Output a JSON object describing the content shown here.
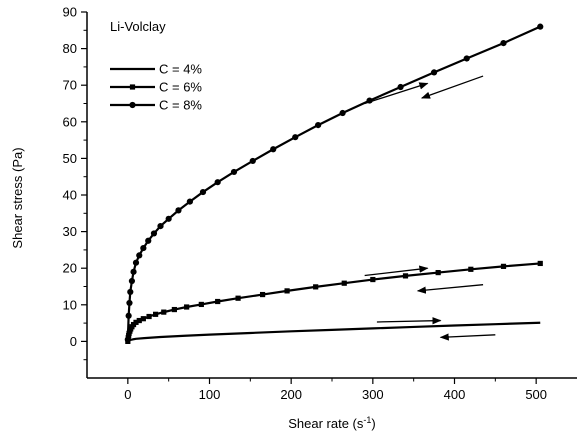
{
  "chart_data": {
    "type": "line",
    "annotation": "Li-Volclay",
    "xlabel": {
      "main": "Shear rate (s",
      "sup": "-1",
      "tail": ")"
    },
    "ylabel": "Shear stress (Pa)",
    "xlim": [
      -50,
      550
    ],
    "ylim": [
      -10,
      90
    ],
    "x_ticks": [
      0,
      100,
      200,
      300,
      400,
      500
    ],
    "y_ticks": [
      0,
      10,
      20,
      30,
      40,
      50,
      60,
      70,
      80,
      90
    ],
    "grid": false,
    "legend_position": "top-left",
    "colors": {
      "line": "#000000",
      "background": "#ffffff"
    },
    "series": [
      {
        "name": "C = 4%",
        "marker": "none",
        "x": [
          0,
          1,
          3,
          6,
          10,
          20,
          40,
          70,
          100,
          150,
          200,
          250,
          300,
          350,
          400,
          450,
          505
        ],
        "y": [
          0,
          0.2,
          0.4,
          0.55,
          0.7,
          0.9,
          1.2,
          1.55,
          1.85,
          2.3,
          2.75,
          3.15,
          3.55,
          3.95,
          4.35,
          4.7,
          5.1
        ]
      },
      {
        "name": "C = 6%",
        "marker": "square",
        "x": [
          0,
          0.5,
          1,
          1.5,
          2.5,
          3.5,
          5,
          7,
          10,
          14,
          19,
          26,
          34,
          44,
          57,
          72,
          90,
          110,
          135,
          165,
          195,
          230,
          265,
          300,
          340,
          380,
          420,
          460,
          505
        ],
        "y": [
          0,
          1,
          1.6,
          2.2,
          2.8,
          3.4,
          4,
          4.6,
          5.2,
          5.7,
          6.2,
          6.8,
          7.4,
          8,
          8.7,
          9.4,
          10.1,
          10.9,
          11.8,
          12.8,
          13.8,
          14.9,
          15.9,
          16.9,
          17.9,
          18.8,
          19.7,
          20.5,
          21.3
        ]
      },
      {
        "name": "C = 8%",
        "marker": "circle",
        "x": [
          0,
          1,
          2,
          3,
          5,
          7,
          10,
          14,
          19,
          25,
          32,
          40,
          50,
          62,
          76,
          92,
          110,
          130,
          153,
          178,
          205,
          233,
          263,
          296,
          334,
          375,
          415,
          460,
          505
        ],
        "y": [
          0.5,
          7,
          10.5,
          13.5,
          16.5,
          19,
          21.5,
          23.5,
          25.5,
          27.5,
          29.5,
          31.5,
          33.5,
          35.8,
          38.2,
          40.8,
          43.5,
          46.3,
          49.3,
          52.5,
          55.8,
          59.1,
          62.4,
          65.8,
          69.5,
          73.5,
          77.3,
          81.5,
          86
        ]
      }
    ],
    "arrows": [
      {
        "from": [
          290,
          65
        ],
        "to": [
          367,
          70.5
        ]
      },
      {
        "from": [
          435,
          72.5
        ],
        "to": [
          360,
          66.5
        ]
      },
      {
        "from": [
          290,
          18
        ],
        "to": [
          367,
          20
        ]
      },
      {
        "from": [
          435,
          15.5
        ],
        "to": [
          355,
          13.8
        ]
      },
      {
        "from": [
          305,
          5.3
        ],
        "to": [
          383,
          5.7
        ]
      },
      {
        "from": [
          450,
          1.8
        ],
        "to": [
          383,
          1.1
        ]
      }
    ]
  }
}
